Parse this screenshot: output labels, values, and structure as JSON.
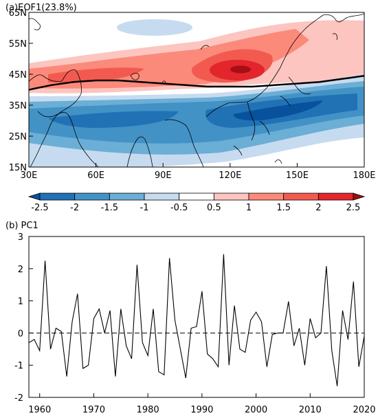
{
  "chart_data": [
    {
      "type": "heatmap",
      "title": "(a)EOF1(23.8%)",
      "x_ticks": [
        "30E",
        "60E",
        "90E",
        "120E",
        "150E",
        "180E"
      ],
      "x_tick_values": [
        30,
        60,
        90,
        120,
        150,
        180
      ],
      "y_ticks": [
        "65N",
        "55N",
        "45N",
        "35N",
        "25N",
        "15N"
      ],
      "y_tick_values": [
        65,
        55,
        45,
        35,
        25,
        15
      ],
      "xlim": [
        30,
        180
      ],
      "ylim": [
        15,
        65
      ],
      "colorbar": {
        "levels": [
          "-2.5",
          "-2",
          "-1.5",
          "-1",
          "-0.5",
          "0.5",
          "1",
          "1.5",
          "2",
          "2.5"
        ],
        "colors": [
          "#08519c",
          "#2171b5",
          "#4292c6",
          "#6baed6",
          "#c6dbef",
          "#ffffff",
          "#fcc5c0",
          "#fb8a7a",
          "#f25a50",
          "#e3252c",
          "#9e0e10"
        ]
      },
      "jet_axis_line": {
        "lon": [
          30,
          40,
          50,
          60,
          70,
          80,
          90,
          100,
          110,
          120,
          130,
          140,
          150,
          160,
          170,
          180
        ],
        "lat": [
          40,
          41.5,
          42.5,
          43,
          43,
          42.5,
          42,
          41.5,
          41,
          41,
          41,
          41.5,
          42,
          42.5,
          43.5,
          44.5
        ]
      }
    },
    {
      "type": "line",
      "title": "(b) PC1",
      "x_ticks": [
        "1960",
        "1970",
        "1980",
        "1990",
        "2000",
        "2010",
        "2020"
      ],
      "x_tick_values": [
        1960,
        1970,
        1980,
        1990,
        2000,
        2010,
        2020
      ],
      "y_ticks": [
        "3",
        "2",
        "1",
        "0",
        "-1",
        "-2"
      ],
      "y_tick_values": [
        3,
        2,
        1,
        0,
        -1,
        -2
      ],
      "xlim": [
        1958,
        2020
      ],
      "ylim": [
        -2,
        3
      ],
      "zero_line": "dashed",
      "x": [
        1958,
        1959,
        1960,
        1961,
        1962,
        1963,
        1964,
        1965,
        1966,
        1967,
        1968,
        1969,
        1970,
        1971,
        1972,
        1973,
        1974,
        1975,
        1976,
        1977,
        1978,
        1979,
        1980,
        1981,
        1982,
        1983,
        1984,
        1985,
        1986,
        1987,
        1988,
        1989,
        1990,
        1991,
        1992,
        1993,
        1994,
        1995,
        1996,
        1997,
        1998,
        1999,
        2000,
        2001,
        2002,
        2003,
        2004,
        2005,
        2006,
        2007,
        2008,
        2009,
        2010,
        2011,
        2012,
        2013,
        2014,
        2015,
        2016,
        2017,
        2018,
        2019,
        2020
      ],
      "series": [
        {
          "values": [
            -0.3,
            -0.2,
            -0.55,
            2.25,
            -0.5,
            0.15,
            0.05,
            -1.35,
            0.35,
            1.22,
            -1.1,
            -1.0,
            0.45,
            0.75,
            0.0,
            0.7,
            -1.35,
            0.75,
            -0.4,
            -0.8,
            2.12,
            -0.3,
            -0.7,
            0.75,
            -1.2,
            -1.3,
            2.33,
            0.4,
            -0.5,
            -1.4,
            0.15,
            0.2,
            1.3,
            -0.65,
            -0.8,
            -1.05,
            2.45,
            -1.0,
            0.85,
            -0.5,
            -0.6,
            0.4,
            0.65,
            0.35,
            -1.05,
            -0.05,
            0.0,
            0.0,
            0.98,
            -0.4,
            0.15,
            -1.0,
            0.45,
            -0.15,
            0.0,
            2.08,
            -0.55,
            -1.65,
            0.7,
            -0.2,
            1.6,
            -1.05,
            -0.1
          ]
        }
      ]
    }
  ]
}
